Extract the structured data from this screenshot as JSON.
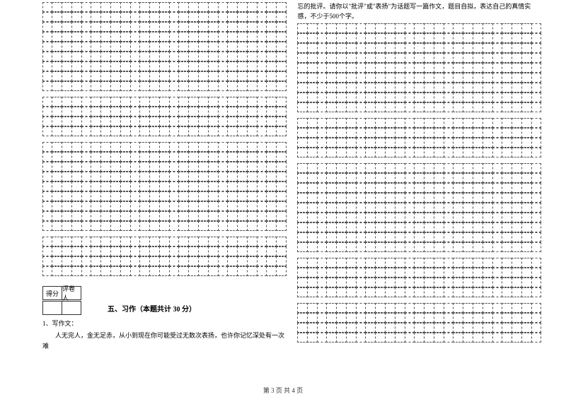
{
  "left": {
    "grids": [
      {
        "rows": 9,
        "cols": 25
      },
      {
        "rows": 4,
        "cols": 25
      },
      {
        "rows": 9,
        "cols": 25
      },
      {
        "rows": 4,
        "cols": 25
      }
    ],
    "score_headers": [
      "得分",
      "评卷人"
    ],
    "section_title": "五、习作（本题共计 30 分）",
    "q_number": "1、写作文：",
    "q_body": "人无完人，金无足赤，从小到现在你可能受过无数次表扬，也许你记忆深处有一次难"
  },
  "right": {
    "continuation": "忘的批评。请你以\"批评\"或\"表扬\"为话题写一篇作文，题目自拟，表达自己的真情实感，不少于500个字。",
    "grids": [
      {
        "rows": 9,
        "cols": 25
      },
      {
        "rows": 4,
        "cols": 25
      },
      {
        "rows": 9,
        "cols": 25
      },
      {
        "rows": 4,
        "cols": 25
      },
      {
        "rows": 4,
        "cols": 25
      }
    ]
  },
  "footer": "第 3 页 共 4 页",
  "style": {
    "cell_border_color": "#555555",
    "text_color": "#333333"
  }
}
